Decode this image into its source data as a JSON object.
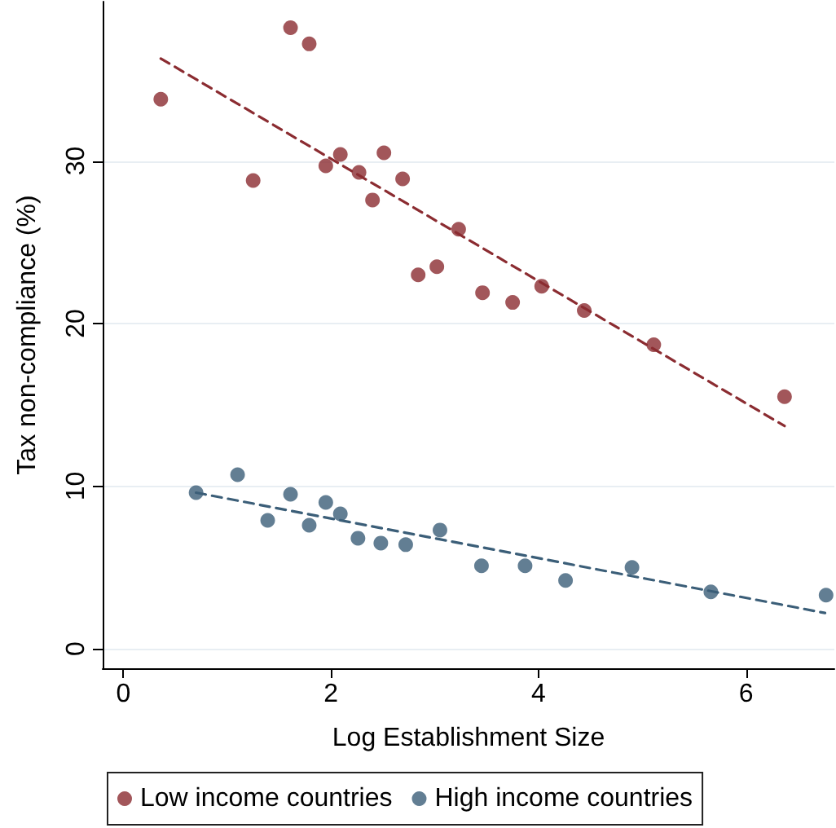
{
  "chart_data": {
    "type": "scatter",
    "xlabel": "Log Establishment Size",
    "ylabel": "Tax non-compliance (%)",
    "xlim": [
      -0.2,
      6.85
    ],
    "xticks": [
      0,
      2,
      4,
      6
    ],
    "ylim": [
      -1.2,
      39.8
    ],
    "yticks": [
      0,
      10,
      20,
      30
    ],
    "grid": "y",
    "legend": "bottom",
    "marker": "circle",
    "series": [
      {
        "name": "Low income countries",
        "color": "#8b2c31",
        "x": [
          0.36,
          1.25,
          1.61,
          1.79,
          1.95,
          2.09,
          2.27,
          2.4,
          2.51,
          2.69,
          2.84,
          3.02,
          3.23,
          3.46,
          3.75,
          4.03,
          4.44,
          5.11,
          6.37
        ],
        "values": [
          33.8,
          28.8,
          38.2,
          37.2,
          29.7,
          30.4,
          29.3,
          27.6,
          30.5,
          28.9,
          23.0,
          23.5,
          25.8,
          21.9,
          21.3,
          22.3,
          20.8,
          18.7,
          15.5
        ]
      },
      {
        "name": "High income countries",
        "color": "#3b5e78",
        "x": [
          0.7,
          1.1,
          1.39,
          1.61,
          1.79,
          1.95,
          2.09,
          2.26,
          2.48,
          2.72,
          3.05,
          3.45,
          3.87,
          4.26,
          4.9,
          5.66,
          6.77
        ],
        "values": [
          9.6,
          10.7,
          7.9,
          9.5,
          7.6,
          9.0,
          8.3,
          6.8,
          6.5,
          6.4,
          7.3,
          5.1,
          5.1,
          4.2,
          5.0,
          3.5,
          3.3
        ]
      },
      {
        "type": "line",
        "color": "#8b2c31",
        "marker": "none",
        "line_style": "dashed",
        "x": [
          0.36,
          6.37
        ],
        "values": [
          36.3,
          13.7
        ]
      },
      {
        "type": "line",
        "color": "#3b5e78",
        "marker": "none",
        "line_style": "dashed",
        "x": [
          0.7,
          6.76
        ],
        "values": [
          9.6,
          2.2
        ]
      }
    ]
  }
}
